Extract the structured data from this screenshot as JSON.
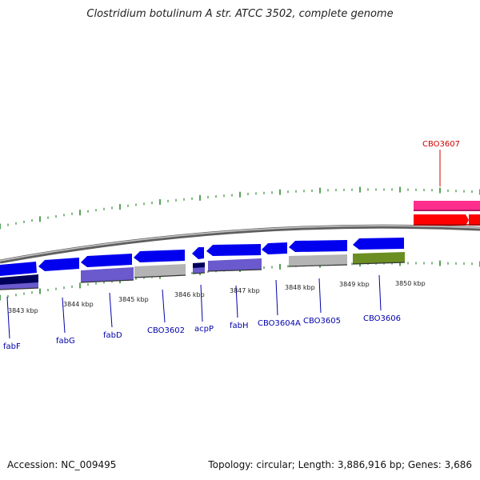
{
  "header": {
    "title": "Clostridium botulinum A str. ATCC 3502, complete genome"
  },
  "footer": {
    "accession": "Accession: NC_009495",
    "stats": "Topology: circular; Length: 3,886,916 bp; Genes: 3,686"
  },
  "colors": {
    "backbone": "#888888",
    "tick": "#2e8b2e",
    "forward_cds": "#ff0000",
    "forward_feature": "#ff2d8c",
    "reverse_cds": "#0000ee",
    "reverse_feature_navy": "#00005a",
    "reverse_feature_slate": "#6a5acd",
    "reverse_feature_gray": "#b4b4b4",
    "reverse_feature_olive": "#6b8e23",
    "forward_label": "#d00000",
    "reverse_label": "#0000aa"
  },
  "kbp_labels": [
    "3843 kbp",
    "3844 kbp",
    "3845 kbp",
    "3846 kbp",
    "3847 kbp",
    "3848 kbp",
    "3849 kbp",
    "3850 kbp"
  ],
  "gene_labels": [
    "fabF",
    "fabG",
    "fabD",
    "CBO3602",
    "acpP",
    "fabH",
    "CBO3604A",
    "CBO3605",
    "CBO3606",
    "CBO3607"
  ]
}
